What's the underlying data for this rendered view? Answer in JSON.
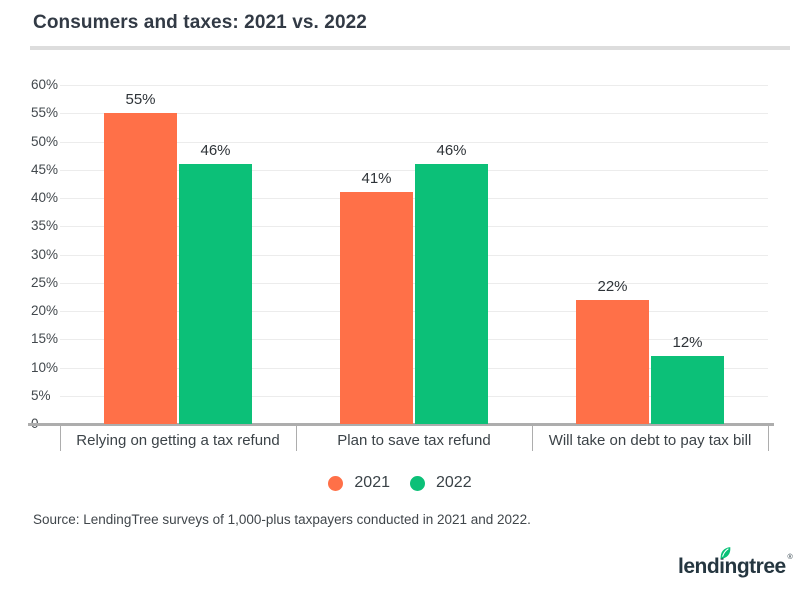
{
  "header": {
    "title": "Consumers and taxes: 2021 vs. 2022"
  },
  "chart_data": {
    "type": "bar",
    "title": "Consumers and taxes: 2021 vs. 2022",
    "categories": [
      "Relying on getting a tax refund",
      "Plan to save tax refund",
      "Will take on debt to pay tax bill"
    ],
    "series": [
      {
        "name": "2021",
        "color": "#FF7048",
        "values": [
          55,
          41,
          22
        ]
      },
      {
        "name": "2022",
        "color": "#0CC078",
        "values": [
          46,
          46,
          12
        ]
      }
    ],
    "ylim": [
      0,
      60
    ],
    "ytick_step": 5,
    "ytick_labels": [
      "60%",
      "55%",
      "50%",
      "45%",
      "40%",
      "35%",
      "30%",
      "25%",
      "20%",
      "15%",
      "10%",
      "5%",
      "0"
    ],
    "value_suffix": "%",
    "grid": true,
    "legend_position": "bottom"
  },
  "footer": {
    "source": "Source: LendingTree surveys of 1,000-plus taxpayers conducted in 2021 and 2022.",
    "logo": {
      "text": "lendingtree",
      "registered": "®"
    }
  },
  "colors": {
    "series_2021": "#FF7048",
    "series_2022": "#0CC078",
    "gridline": "#ECECEC",
    "axis": "#ADADAD",
    "title_text": "#323A45",
    "logo_navy": "#253640",
    "logo_leaf_green": "#08C177"
  }
}
